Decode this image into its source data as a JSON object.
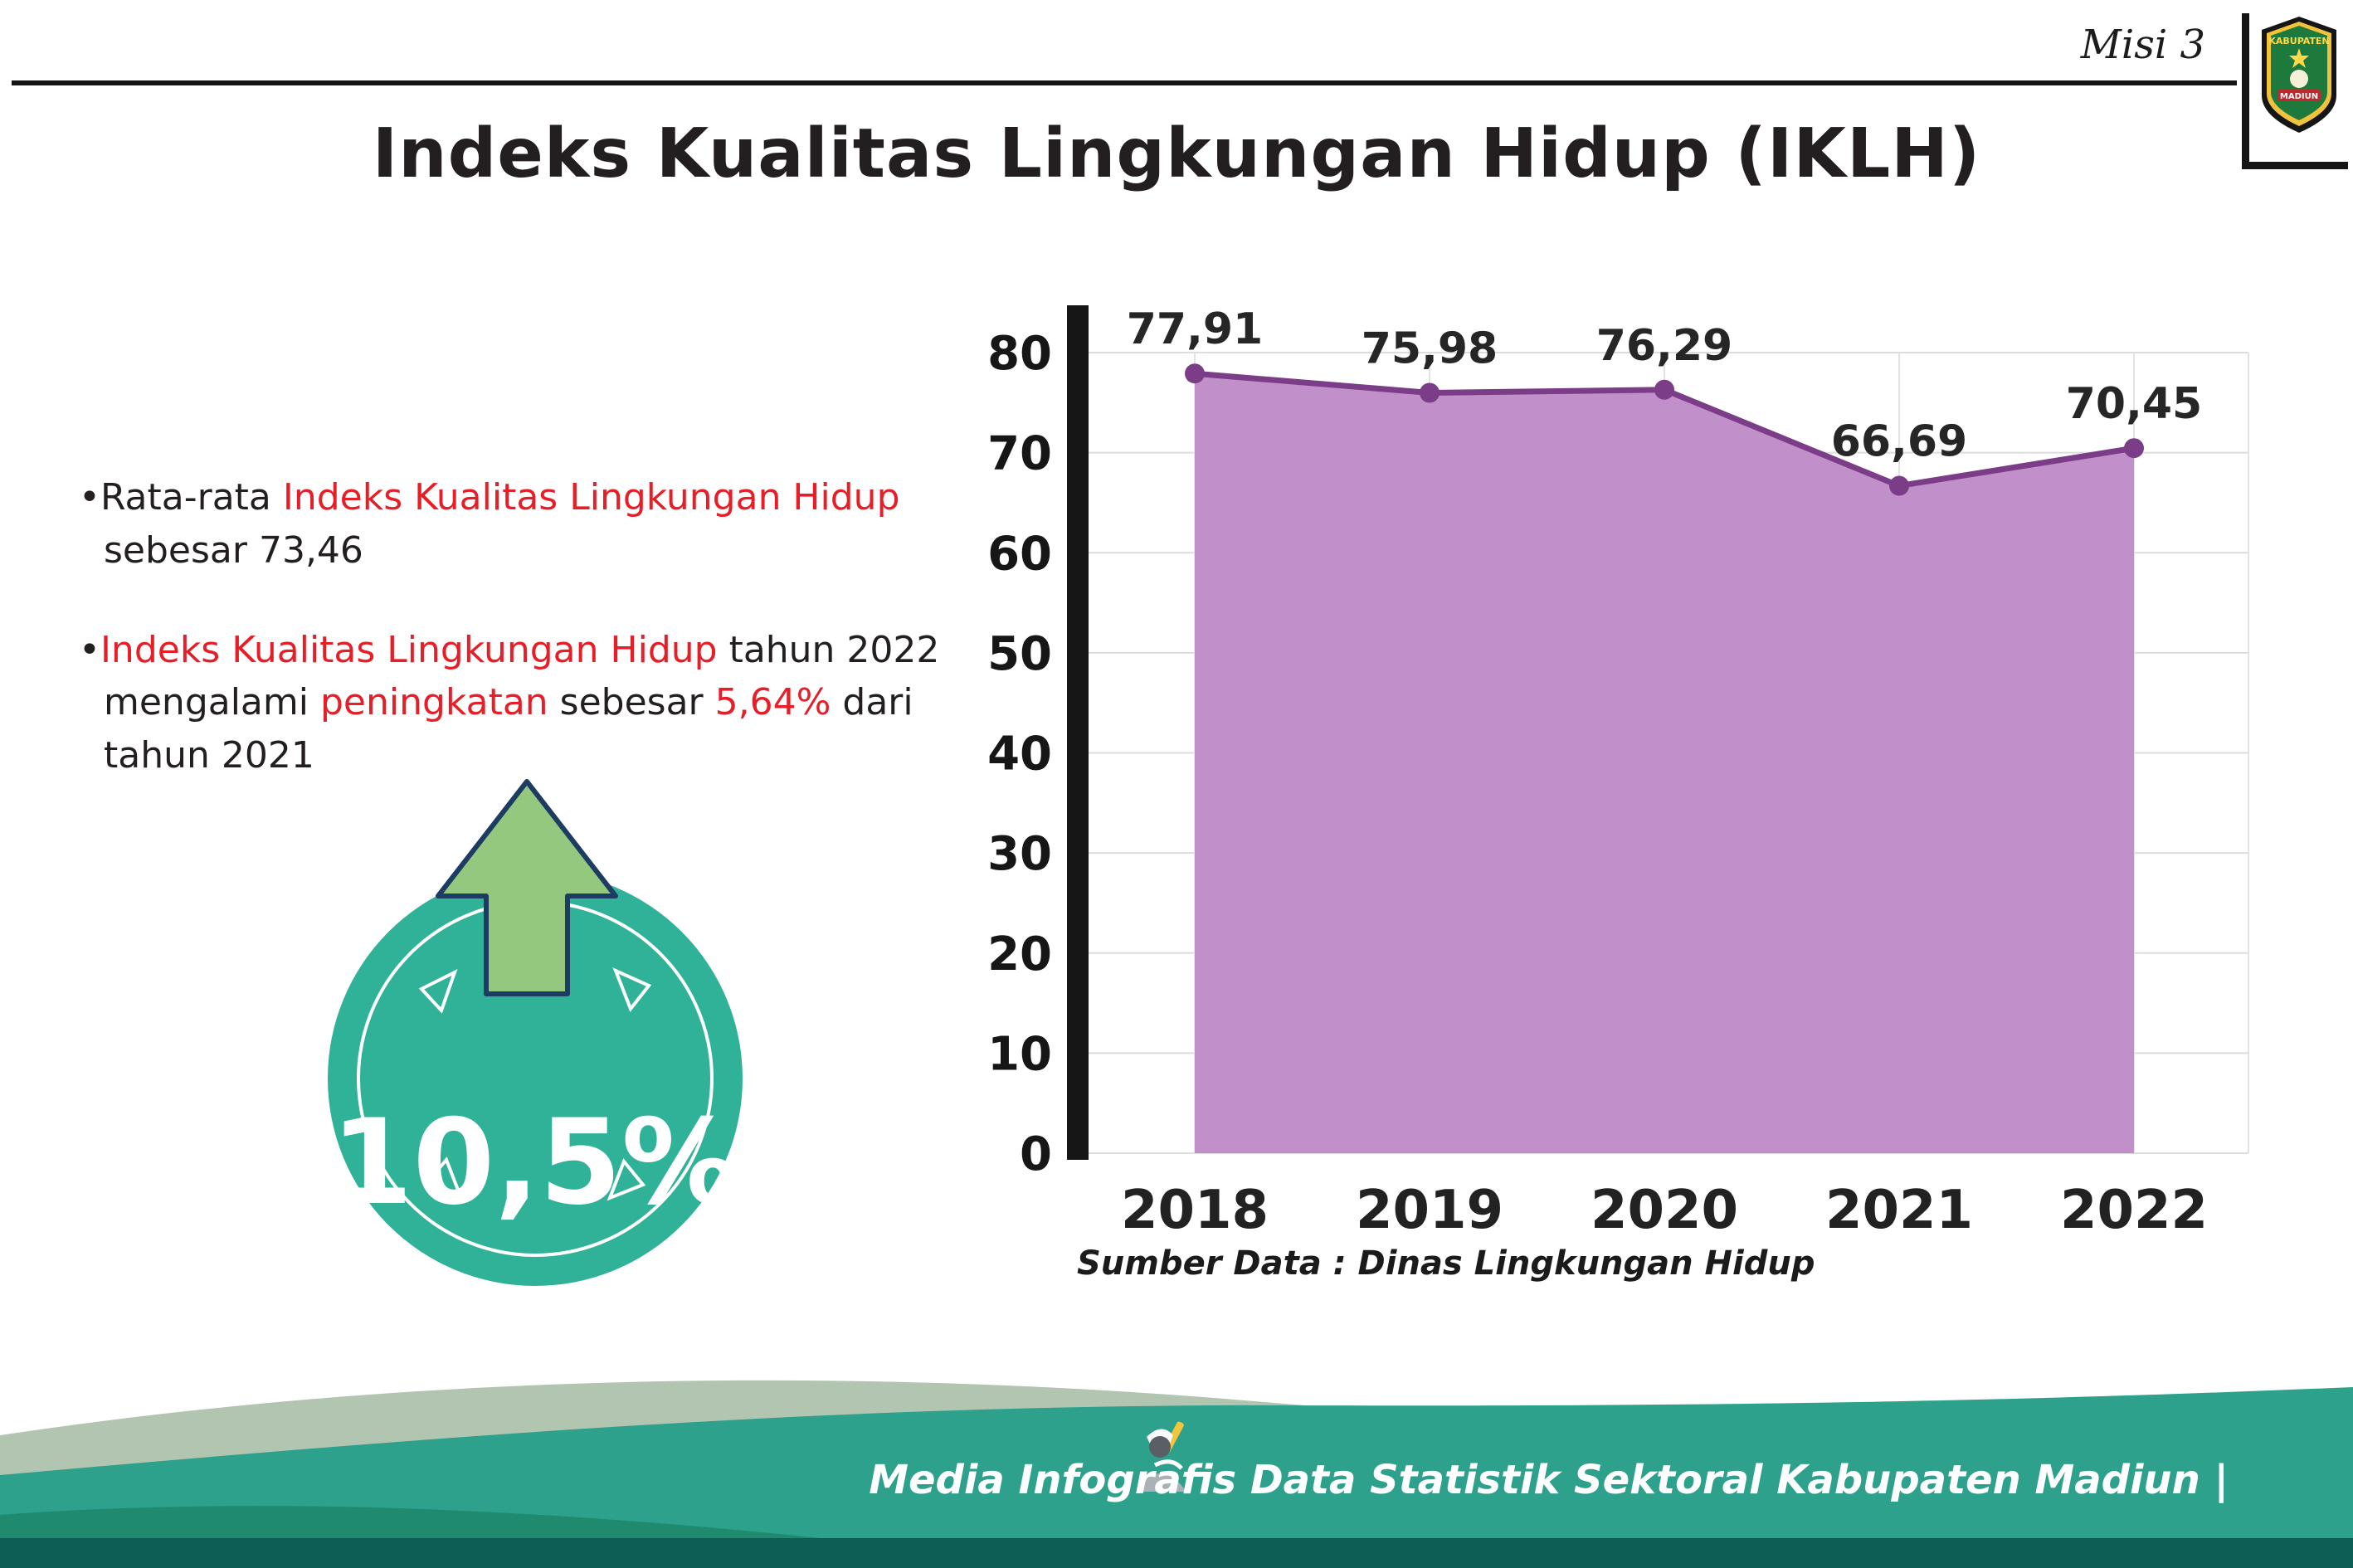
{
  "header": {
    "misi_label": "Misi 3",
    "title": "Indeks Kualitas Lingkungan Hidup (IKLH)"
  },
  "logo": {
    "name": "kabupaten-madiun-crest",
    "top_text": "KABUPATEN",
    "bottom_text": "MADIUN"
  },
  "bullets": {
    "marker": "•",
    "items": [
      {
        "segments": [
          {
            "text": "Rata-rata "
          },
          {
            "text": "Indeks Kualitas Lingkungan Hidup",
            "red": true
          },
          {
            "text": " sebesar 73,46"
          }
        ]
      },
      {
        "segments": [
          {
            "text": "Indeks Kualitas Lingkungan Hidup",
            "red": true
          },
          {
            "text": " tahun 2022 mengalami "
          },
          {
            "text": "peningkatan",
            "red": true
          },
          {
            "text": " sebesar "
          },
          {
            "text": "5,64%",
            "red": true
          },
          {
            "text": " dari tahun 2021"
          }
        ]
      }
    ]
  },
  "badge": {
    "value": "10,5%",
    "circle_color": "#2fb298",
    "arrow_color": "#93c87e",
    "arrow_outline": "#1d3c62"
  },
  "chart_data": {
    "type": "area",
    "title": "Indeks Kualitas Lingkungan Hidup (IKLH)",
    "categories": [
      "2018",
      "2019",
      "2020",
      "2021",
      "2022"
    ],
    "values": [
      77.91,
      75.98,
      76.29,
      66.69,
      70.45
    ],
    "value_labels": [
      "77,91",
      "75,98",
      "76,29",
      "66,69",
      "70,45"
    ],
    "xlabel": "",
    "ylabel": "",
    "ylim": [
      0,
      80
    ],
    "ytick_step": 10,
    "grid": true,
    "legend": false,
    "source": "Sumber Data : Dinas Lingkungan Hidup",
    "colors": {
      "area": "#c18fc9",
      "line": "#7c3d88",
      "marker": "#7c3d88"
    }
  },
  "footer": {
    "credit": "Media Infografis Data Statistik Sektoral Kabupaten Madiun |"
  },
  "colors": {
    "accent_red": "#e61e27",
    "teal_wave": "#2da18c",
    "sage_wave": "#b2c5b1",
    "dark_strip": "#0d5e55"
  }
}
